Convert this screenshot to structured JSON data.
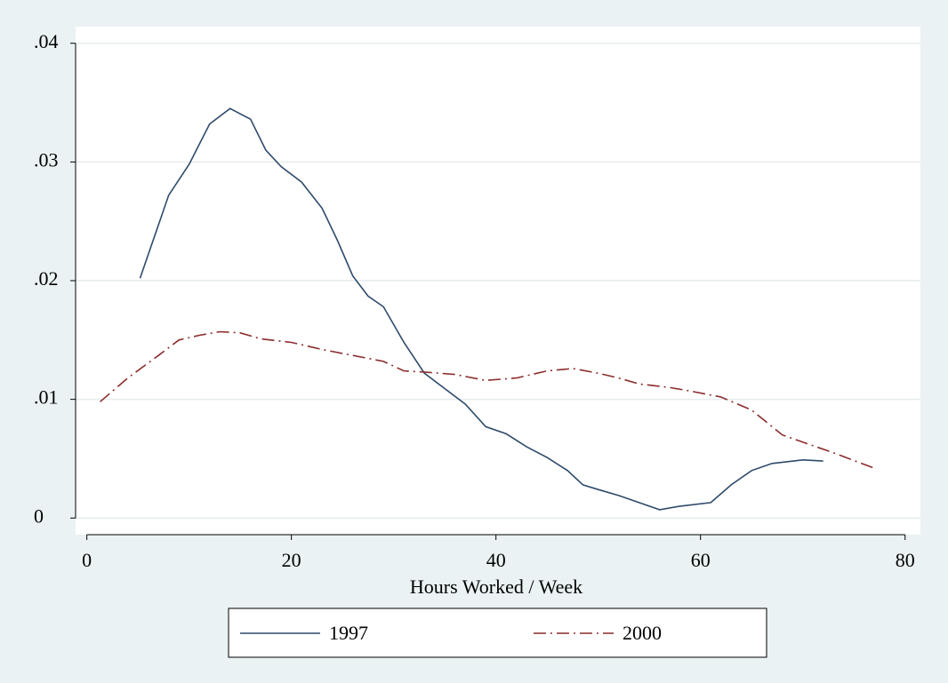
{
  "chart_data": {
    "type": "line",
    "xlabel": "Hours Worked / Week",
    "xlim": [
      -1.1,
      81.5
    ],
    "xticks": [
      0,
      20,
      40,
      60,
      80
    ],
    "ylim": [
      -0.0014,
      0.0414
    ],
    "yticks": [
      0,
      {
        "value": 0.01,
        "label": ".01"
      },
      {
        "value": 0.02,
        "label": ".02"
      },
      {
        "value": 0.03,
        "label": ".03"
      },
      {
        "value": 0.04,
        "label": ".04"
      }
    ],
    "grid": true,
    "legend": "bottom",
    "series": [
      {
        "name": "1997",
        "color": "#2e4a6b",
        "dash": "solid",
        "x": [
          5.2,
          8,
          10,
          12,
          14,
          16,
          17.5,
          19,
          21,
          23,
          24.5,
          26,
          27.5,
          29,
          31,
          33,
          35,
          37,
          39,
          41,
          43,
          45,
          47,
          48.5,
          50,
          52,
          54,
          56,
          58,
          61,
          63,
          65,
          67,
          70,
          72
        ],
        "values": [
          0.0202,
          0.0272,
          0.0298,
          0.0332,
          0.0345,
          0.0336,
          0.031,
          0.0296,
          0.0283,
          0.0261,
          0.0234,
          0.0204,
          0.0187,
          0.0178,
          0.0148,
          0.0122,
          0.0109,
          0.0096,
          0.0077,
          0.0071,
          0.006,
          0.0051,
          0.004,
          0.0028,
          0.0024,
          0.0019,
          0.0013,
          0.0007,
          0.001,
          0.0013,
          0.0028,
          0.004,
          0.0046,
          0.0049,
          0.0048
        ]
      },
      {
        "name": "2000",
        "color": "#8b2c2c",
        "dash": "dashdot",
        "x": [
          1.3,
          4,
          7,
          9,
          11,
          13,
          15,
          17,
          20,
          23,
          26,
          29,
          31,
          33,
          36,
          39,
          42,
          45,
          47.5,
          50,
          52,
          54,
          57,
          59,
          62,
          65,
          68,
          70,
          73,
          77
        ],
        "values": [
          0.0098,
          0.0118,
          0.0137,
          0.015,
          0.0154,
          0.0157,
          0.0156,
          0.0151,
          0.0148,
          0.0142,
          0.0137,
          0.0132,
          0.0124,
          0.0123,
          0.0121,
          0.0116,
          0.0118,
          0.0124,
          0.0126,
          0.0122,
          0.0118,
          0.0113,
          0.011,
          0.0107,
          0.0102,
          0.0091,
          0.007,
          0.0064,
          0.0055,
          0.0042
        ]
      }
    ]
  }
}
